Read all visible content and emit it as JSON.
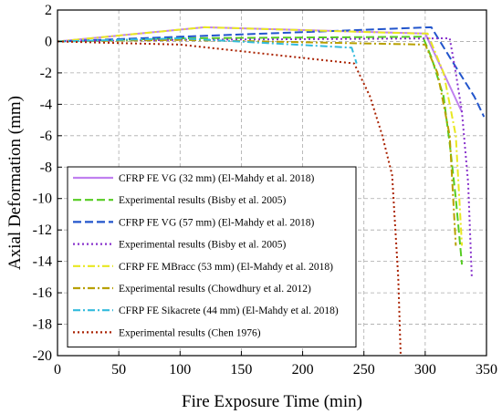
{
  "chart_data": {
    "type": "line",
    "title": "",
    "xlabel": "Fire Exposure Time (min)",
    "ylabel": "Axial Deformation (mm)",
    "xlim": [
      0,
      350
    ],
    "ylim": [
      -20,
      2
    ],
    "xticks": [
      0,
      50,
      100,
      150,
      200,
      250,
      300,
      350
    ],
    "yticks": [
      2,
      0,
      -2,
      -4,
      -6,
      -8,
      -10,
      -12,
      -14,
      -16,
      -18,
      -20
    ],
    "grid": true,
    "legend_position": "lower-left",
    "series": [
      {
        "name": "CFRP FE VG (32 mm) (El-Mahdy et al. 2018)",
        "color": "#c080f0",
        "dash": "solid",
        "x": [
          0,
          120,
          300,
          330
        ],
        "y": [
          0,
          0.9,
          0.5,
          -4.5
        ]
      },
      {
        "name": "Experimental results (Bisby et al. 2005)",
        "color": "#55cc22",
        "dash": "dashed",
        "x": [
          0,
          100,
          298,
          305,
          315,
          320,
          325,
          330
        ],
        "y": [
          0,
          0.2,
          0.3,
          -1.0,
          -3.5,
          -6.5,
          -10.0,
          -14.2
        ]
      },
      {
        "name": "CFRP FE VG (57 mm) (El-Mahdy et al. 2018)",
        "color": "#2255cc",
        "dash": "dashed",
        "x": [
          0,
          100,
          305,
          320,
          340,
          348
        ],
        "y": [
          0,
          0.3,
          0.9,
          -1.0,
          -3.5,
          -4.8
        ]
      },
      {
        "name": "Experimental results (Bisby et al. 2005)",
        "color": "#8833cc",
        "dash": "dotted",
        "x": [
          0,
          100,
          320,
          325,
          330,
          335,
          338
        ],
        "y": [
          0,
          0.1,
          0.2,
          -2.0,
          -4.5,
          -9.0,
          -15.0
        ]
      },
      {
        "name": "CFRP FE MBracc (53 mm) (El-Mahdy et al. 2018)",
        "color": "#e8e820",
        "dash": "dashdot",
        "x": [
          0,
          120,
          295,
          302,
          315,
          325,
          330
        ],
        "y": [
          0,
          0.9,
          0.5,
          0.5,
          -2.0,
          -6.0,
          -13.0
        ]
      },
      {
        "name": "Experimental results (Chowdhury et al. 2012)",
        "color": "#b8a000",
        "dash": "dashdot",
        "x": [
          0,
          100,
          300,
          310,
          320,
          325
        ],
        "y": [
          0,
          0.1,
          -0.2,
          -2.0,
          -6.0,
          -13.0
        ]
      },
      {
        "name": "CFRP FE Sikacrete (44 mm) (El-Mahdy et al. 2018)",
        "color": "#33bbdd",
        "dash": "dashdot",
        "x": [
          0,
          100,
          240,
          244
        ],
        "y": [
          0,
          0.2,
          -0.4,
          -1.4
        ]
      },
      {
        "name": "Experimental results (Chen 1976)",
        "color": "#aa2200",
        "dash": "dotted",
        "x": [
          0,
          100,
          242,
          255,
          265,
          273,
          278,
          280
        ],
        "y": [
          0,
          -0.2,
          -1.4,
          -3.5,
          -6.0,
          -8.5,
          -15.0,
          -20.0
        ]
      }
    ]
  }
}
